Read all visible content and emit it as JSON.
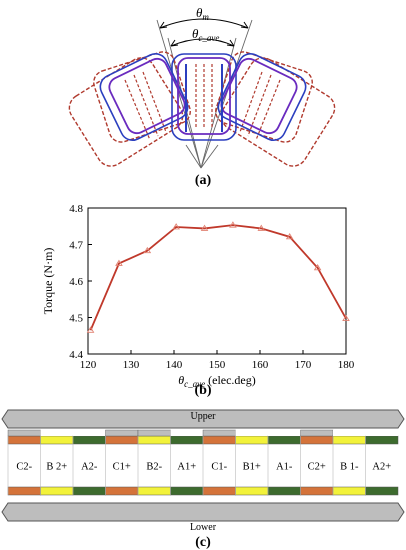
{
  "panel_a": {
    "label": "(a)",
    "theta_m": "θ",
    "theta_m_sub": "m",
    "theta_c": "θ",
    "theta_c_sub": "c_ave"
  },
  "panel_b": {
    "label": "(b)"
  },
  "panel_c": {
    "label": "(c)",
    "upper_label": "Upper",
    "lower_label": "Lower",
    "slots": [
      "C2-",
      "B 2+",
      "A2-",
      "C1+",
      "B2-",
      "A1+",
      "C1-",
      "B1+",
      "A1-",
      "C2+",
      "B 1-",
      "A2+"
    ],
    "top_bars": [
      "orange",
      "yellow",
      "green",
      "orange",
      "yellow",
      "green",
      "orange",
      "yellow",
      "green",
      "orange",
      "yellow",
      "green"
    ],
    "bar_layout_top": [
      "L",
      "R",
      "R",
      "L",
      "L",
      "R",
      "L",
      "R",
      "R",
      "L",
      "R",
      "R"
    ],
    "colors": {
      "orange": "#d4733a",
      "yellow": "#f2f23a",
      "green": "#3d6b2e",
      "rail": "#bdbdbd",
      "rail_edge": "#555555"
    }
  },
  "chart_data": {
    "type": "line",
    "xlabel_symbol": "θ",
    "xlabel_sub": "c_ave",
    "xlabel_rest": " (elec.deg)",
    "ylabel": "Torque (N·m)",
    "xlim": [
      120,
      180
    ],
    "ylim": [
      4.4,
      4.8
    ],
    "xticks": [
      120,
      130,
      140,
      150,
      160,
      170,
      180
    ],
    "yticks": [
      4.4,
      4.5,
      4.6,
      4.7,
      4.8
    ],
    "yticklabels": [
      "4.4",
      "4.5",
      "4.6",
      "4.7",
      "4.8"
    ],
    "x": [
      120.6,
      127.2,
      133.8,
      140.5,
      147.1,
      153.7,
      160.3,
      166.9,
      173.4,
      180.0
    ],
    "y": [
      4.465,
      4.648,
      4.683,
      4.748,
      4.744,
      4.753,
      4.744,
      4.721,
      4.636,
      4.497
    ],
    "line_color": "#c0392b",
    "grid": false
  }
}
